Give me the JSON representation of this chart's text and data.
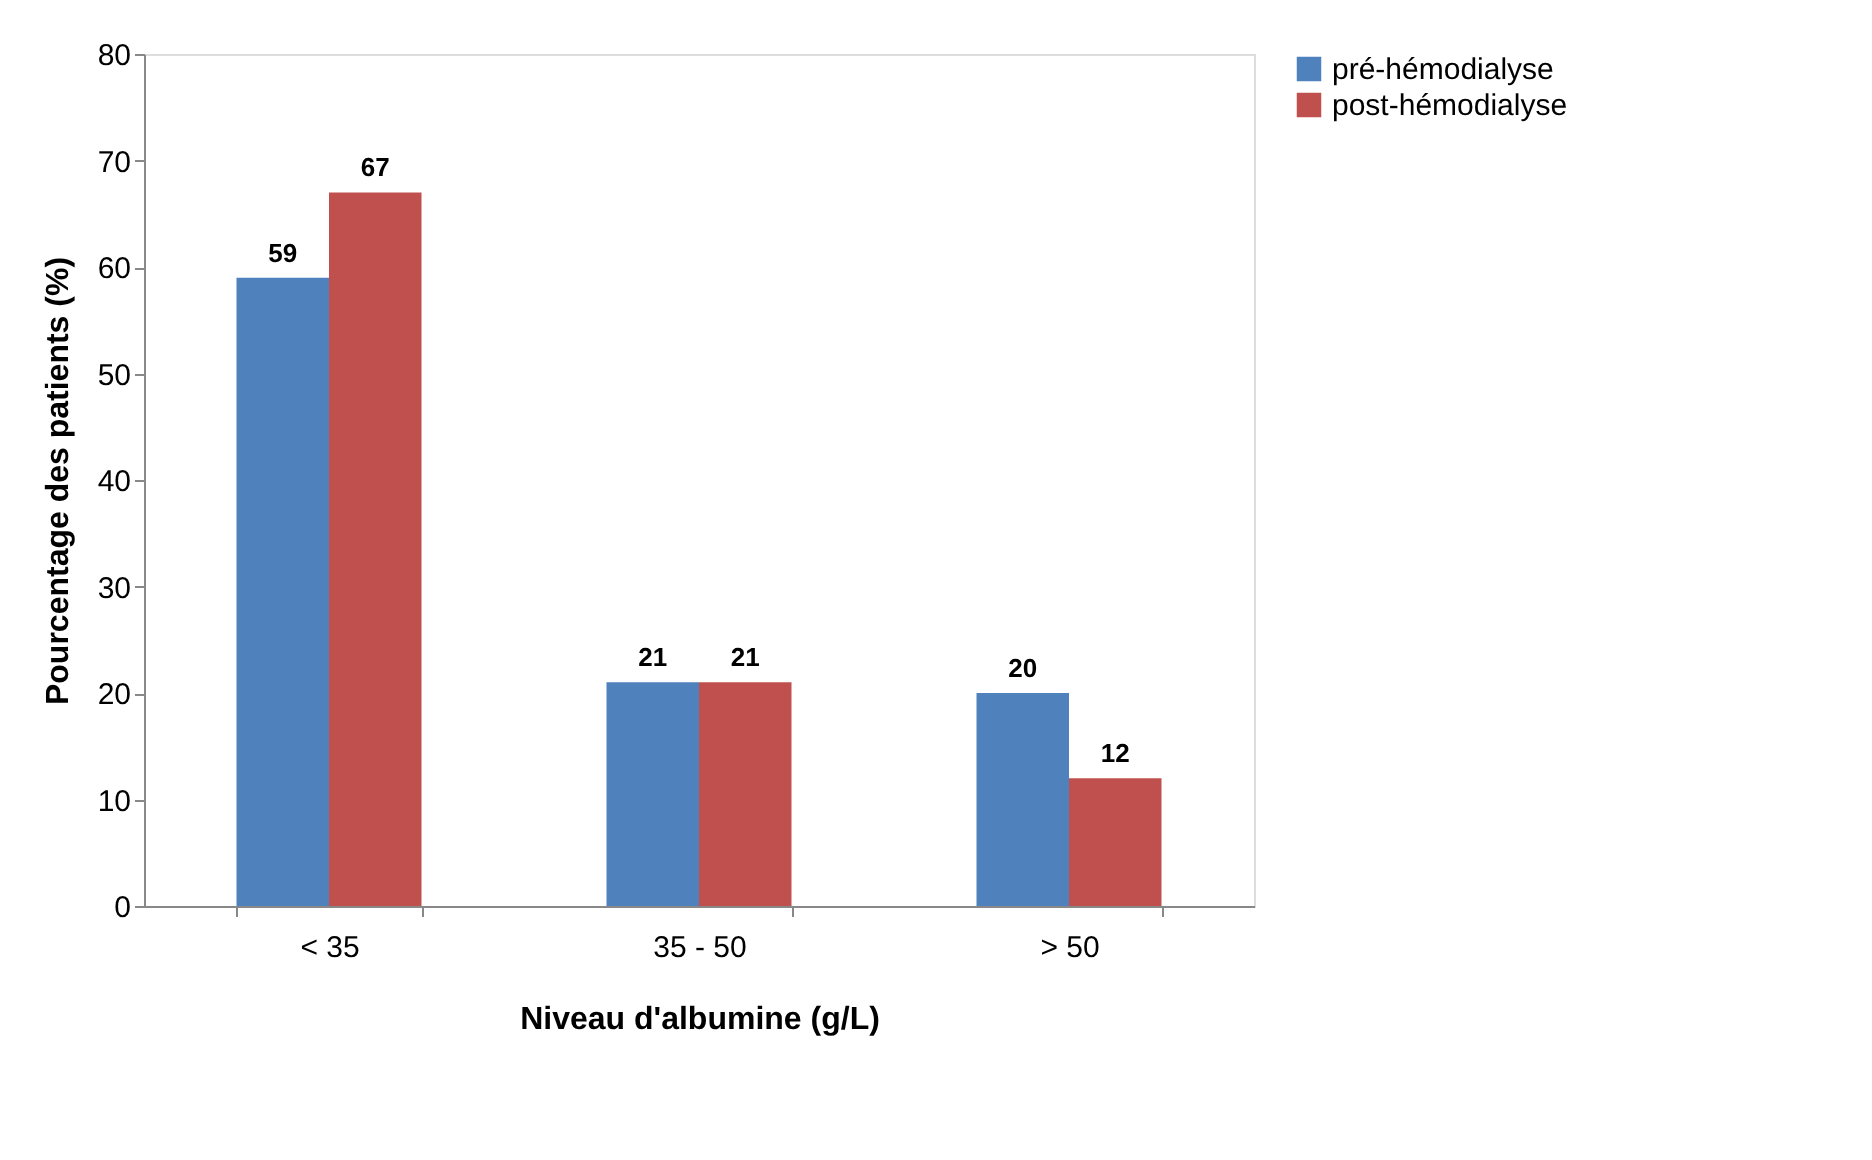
{
  "chart_data": {
    "type": "bar",
    "xlabel": "Niveau d'albumine  (g/L)",
    "ylabel": "Pourcentage des patients (%)",
    "categories": [
      "< 35",
      "35 - 50",
      "> 50"
    ],
    "series": [
      {
        "name": "pré-hémodialyse",
        "color": "#4f81bd",
        "values": [
          59,
          21,
          20
        ]
      },
      {
        "name": "post-hémodialyse",
        "color": "#c0504d",
        "values": [
          67,
          21,
          12
        ]
      }
    ],
    "ylim": [
      0,
      80
    ],
    "yticks": [
      0,
      10,
      20,
      30,
      40,
      50,
      60,
      70,
      80
    ],
    "grid": false,
    "legend": "right",
    "data_labels": true
  }
}
